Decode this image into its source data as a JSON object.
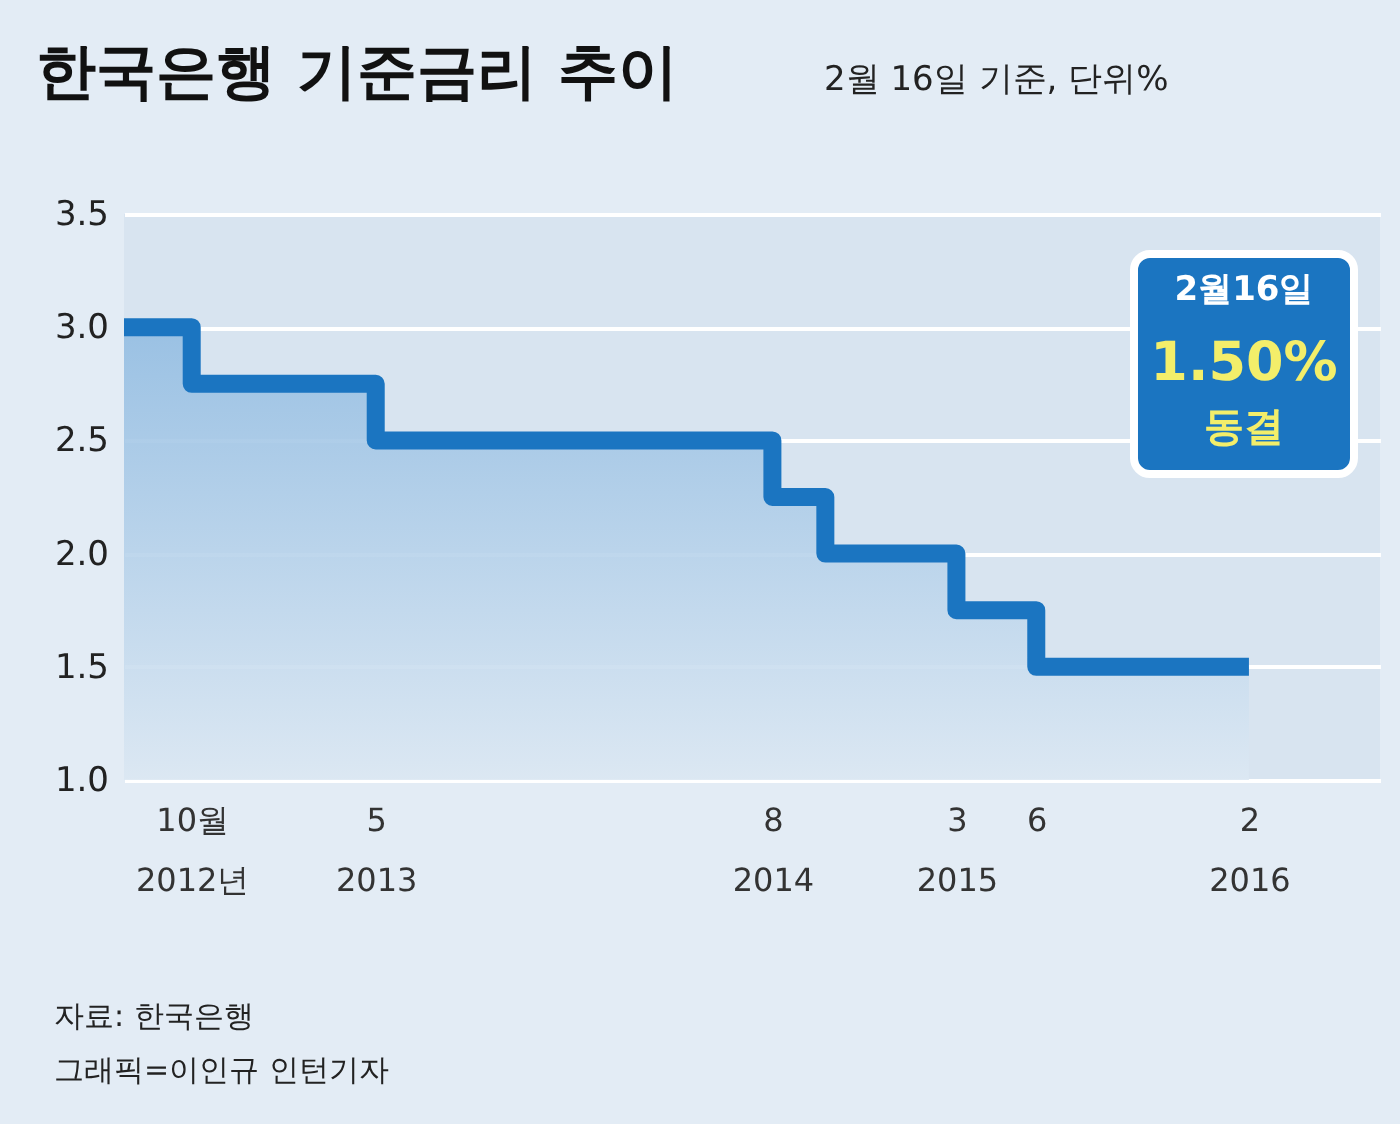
{
  "chart_data": {
    "type": "area",
    "title": "한국은행 기준금리 추이",
    "subtitle": "2월 16일 기준, 단위%",
    "x": [
      "2012-07-15",
      "2012-10",
      "2012-10",
      "2013-05",
      "2013-05",
      "2014-08",
      "2014-08",
      "2014-10",
      "2014-10",
      "2015-03",
      "2015-03",
      "2015-06",
      "2015-06",
      "2016-02"
    ],
    "series": [
      {
        "color": "#1b75c1",
        "values": [
          3.0,
          3.0,
          2.75,
          2.75,
          2.5,
          2.5,
          2.25,
          2.25,
          2.0,
          2.0,
          1.75,
          1.75,
          1.5,
          1.5
        ]
      }
    ],
    "xlim": [
      "2012-07-15",
      "2016-07-01"
    ],
    "xticks": [
      {
        "value": "2012-10",
        "label": "10월\n2012년"
      },
      {
        "value": "2013-05",
        "label": "5\n2013"
      },
      {
        "value": "2014-08",
        "label": "8\n2014"
      },
      {
        "value": "2015-03",
        "label": "3\n2015"
      },
      {
        "value": "2015-06",
        "label": "6"
      },
      {
        "value": "2016-02",
        "label": "2\n2016"
      }
    ],
    "ylim": [
      1.0,
      3.5
    ],
    "yticks": [
      {
        "value": 1.0,
        "label": "1.0"
      },
      {
        "value": 1.5,
        "label": "1.5"
      },
      {
        "value": 2.0,
        "label": "2.0"
      },
      {
        "value": 2.5,
        "label": "2.5"
      },
      {
        "value": 3.0,
        "label": "3.0"
      },
      {
        "value": 3.5,
        "label": "3.5"
      }
    ],
    "grid": "y",
    "annotations": [
      "2월16일\n1.50%\n동결",
      "자료: 한국은행",
      "그래픽=이인규 인턴기자"
    ]
  }
}
